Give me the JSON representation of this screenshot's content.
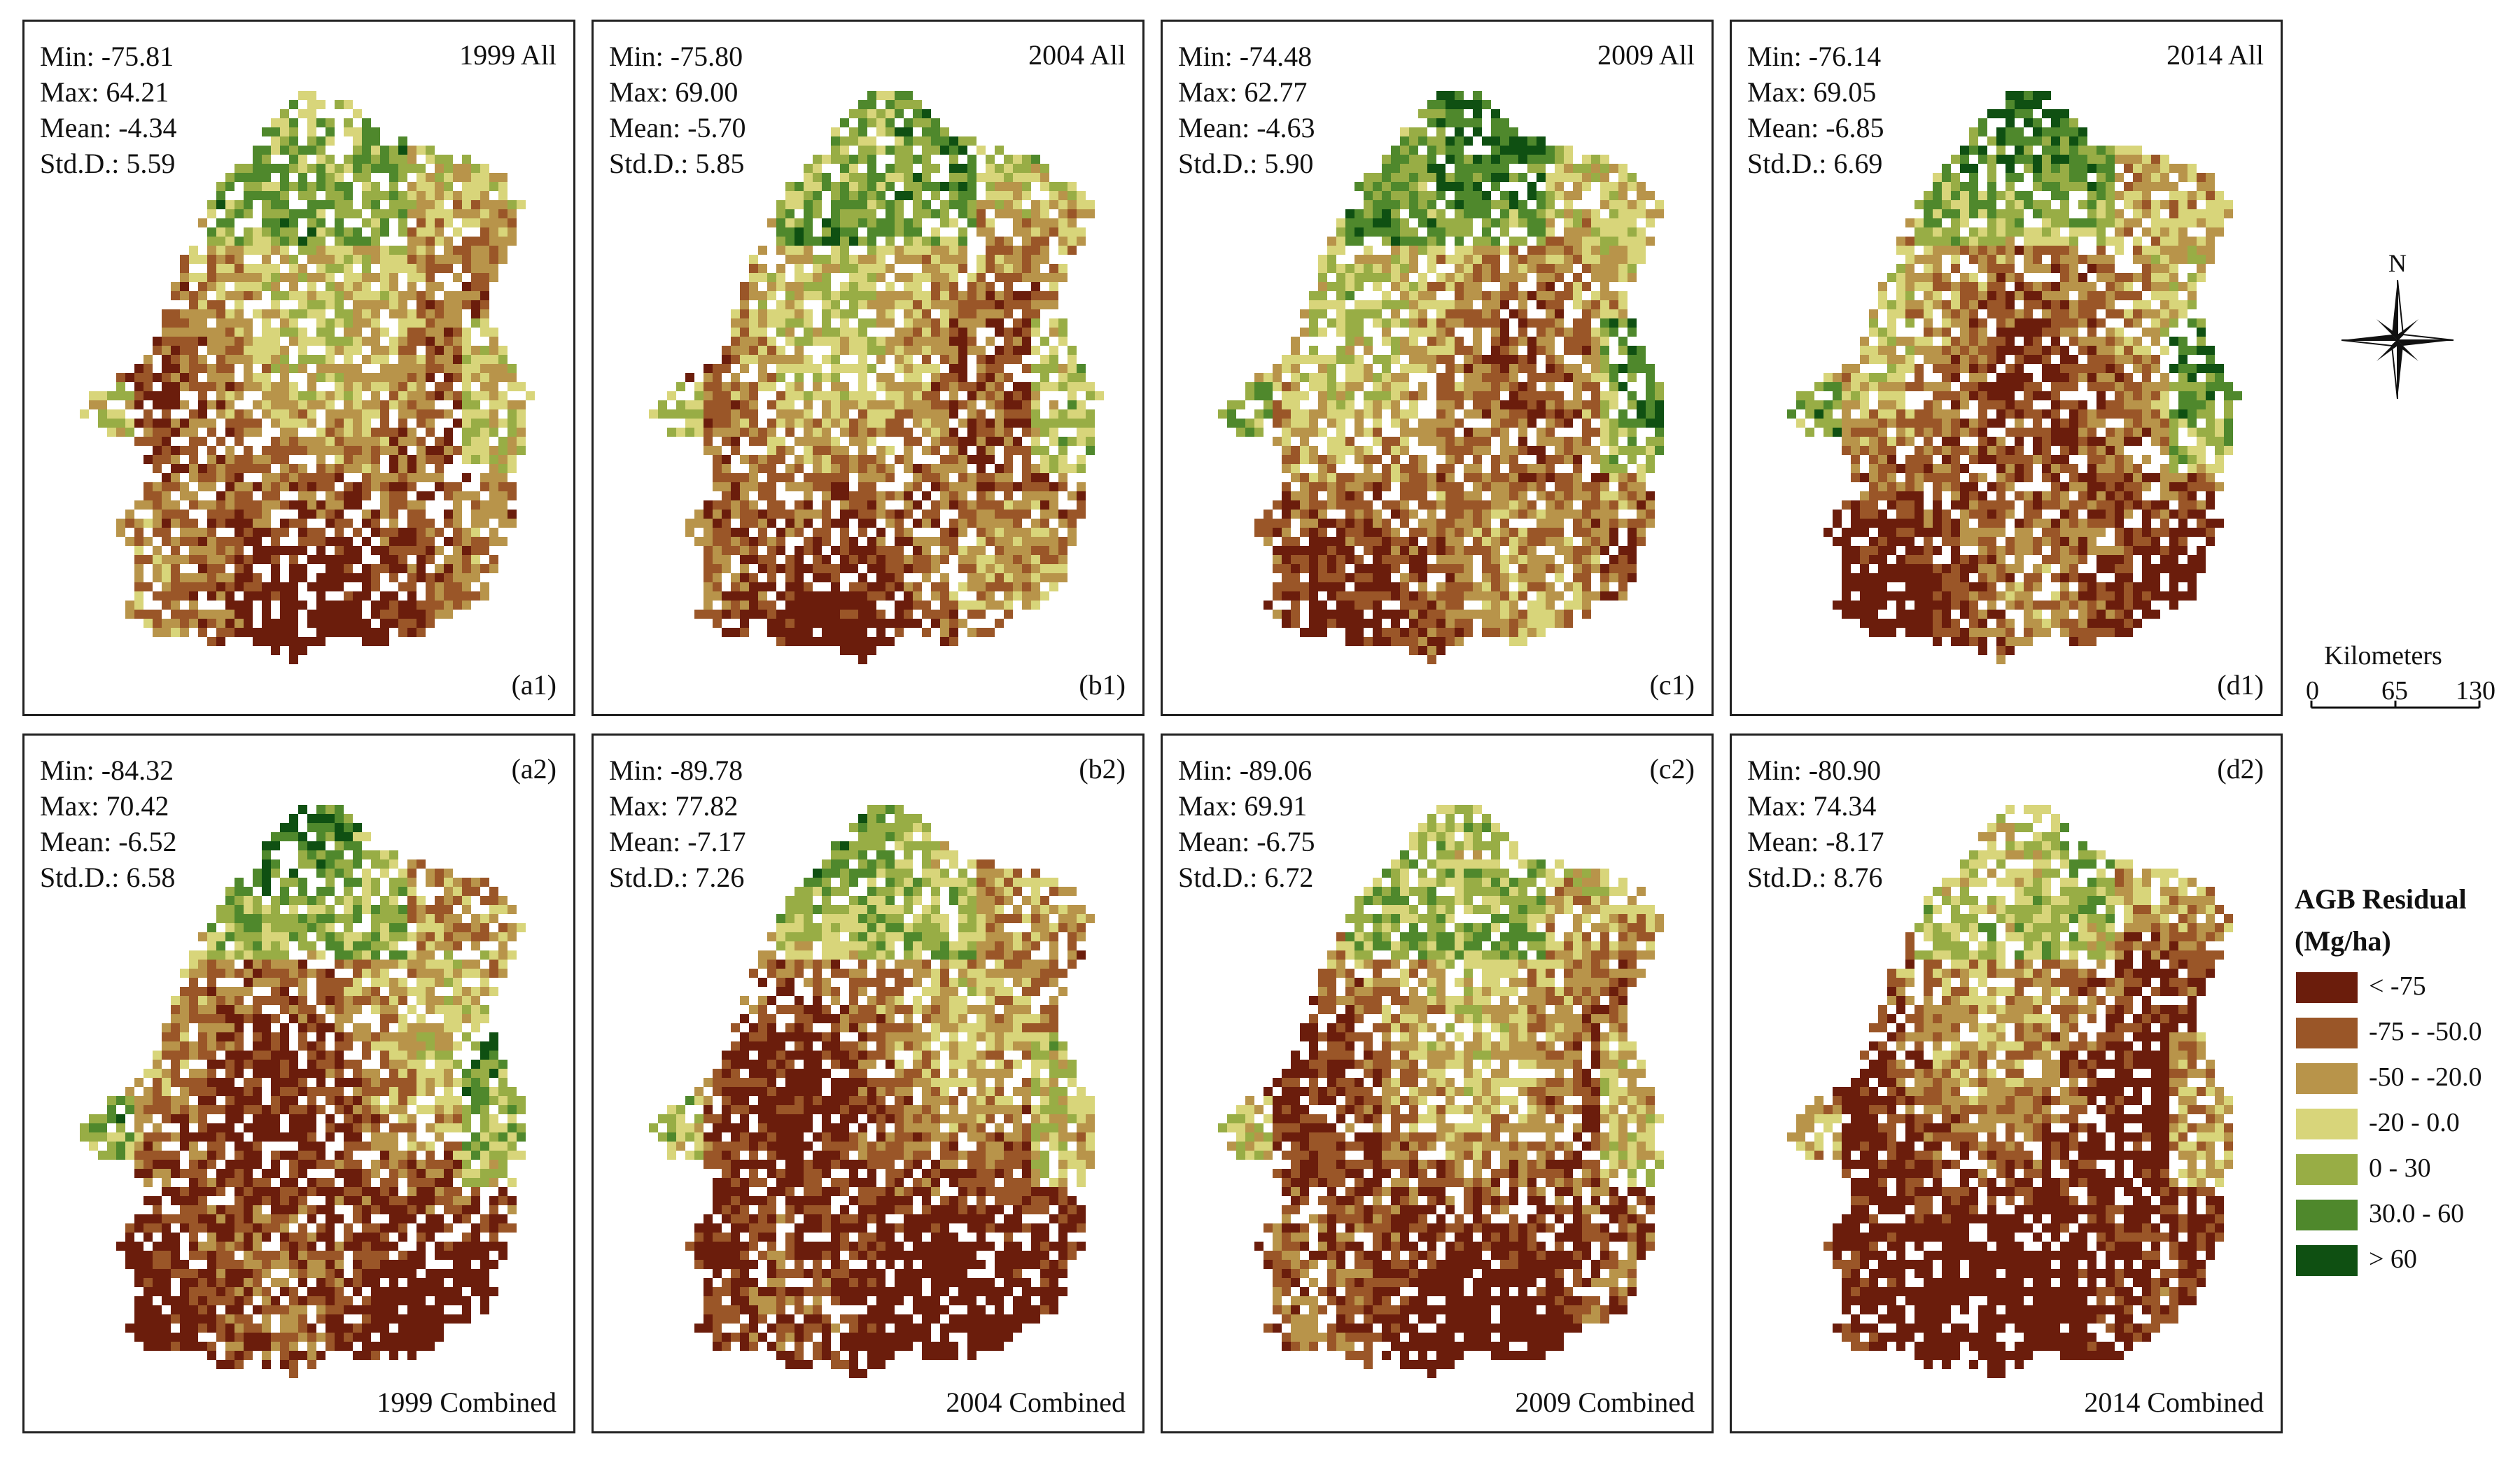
{
  "palette": {
    "c1": "#6b1d0c",
    "c2": "#9a5628",
    "c3": "#b8944a",
    "c4": "#d8d57a",
    "c5": "#98ad45",
    "c6": "#4f882c",
    "c7": "#0f5012"
  },
  "panels": [
    {
      "id": "a1",
      "code": "(a1)",
      "title": "1999 All",
      "min": "Min: -75.81",
      "max": "Max: 64.21",
      "mean": "Mean: -4.34",
      "std": "Std.D.: 5.59"
    },
    {
      "id": "b1",
      "code": "(b1)",
      "title": "2004 All",
      "min": "Min: -75.80",
      "max": "Max: 69.00",
      "mean": "Mean: -5.70",
      "std": "Std.D.: 5.85"
    },
    {
      "id": "c1",
      "code": "(c1)",
      "title": "2009 All",
      "min": "Min: -74.48",
      "max": "Max: 62.77",
      "mean": "Mean: -4.63",
      "std": "Std.D.: 5.90"
    },
    {
      "id": "d1",
      "code": "(d1)",
      "title": "2014 All",
      "min": "Min: -76.14",
      "max": "Max: 69.05",
      "mean": "Mean: -6.85",
      "std": "Std.D.: 6.69"
    },
    {
      "id": "a2",
      "code": "(a2)",
      "title": "1999 Combined",
      "min": "Min: -84.32",
      "max": "Max: 70.42",
      "mean": "Mean: -6.52",
      "std": "Std.D.: 6.58"
    },
    {
      "id": "b2",
      "code": "(b2)",
      "title": "2004 Combined",
      "min": "Min: -89.78",
      "max": "Max: 77.82",
      "mean": "Mean: -7.17",
      "std": "Std.D.: 7.26"
    },
    {
      "id": "c2",
      "code": "(c2)",
      "title": "2009 Combined",
      "min": "Min: -89.06",
      "max": "Max: 69.91",
      "mean": "Mean: -6.75",
      "std": "Std.D.: 6.72"
    },
    {
      "id": "d2",
      "code": "(d2)",
      "title": "2014 Combined",
      "min": "Min: -80.90",
      "max": "Max: 74.34",
      "mean": "Mean: -8.17",
      "std": "Std.D.: 8.76"
    }
  ],
  "north": {
    "label": "N"
  },
  "scale": {
    "title": "Kilometers",
    "ticks": [
      "0",
      "65",
      "130"
    ]
  },
  "legend": {
    "title": "AGB Residual",
    "unit": "(Mg/ha)",
    "items": [
      {
        "label": "< -75",
        "color": "#6b1d0c"
      },
      {
        "label": "-75 - -50.0",
        "color": "#9a5628"
      },
      {
        "label": "-50 - -20.0",
        "color": "#b8944a"
      },
      {
        "label": "-20 - 0.0",
        "color": "#d8d57a"
      },
      {
        "label": "0 - 30",
        "color": "#98ad45"
      },
      {
        "label": "30.0 - 60",
        "color": "#4f882c"
      },
      {
        "label": "> 60",
        "color": "#0f5012"
      }
    ]
  }
}
